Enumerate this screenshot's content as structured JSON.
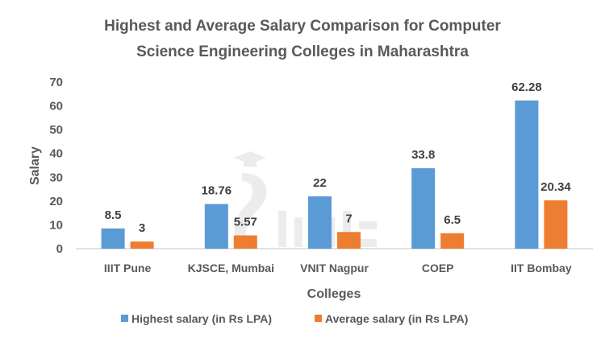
{
  "chart_data": {
    "type": "bar",
    "title": "Highest and Average Salary Comparison for Computer Science Engineering Colleges in Maharashtra",
    "title_lines": [
      "Highest and Average Salary Comparison for Computer",
      "Science Engineering Colleges in Maharashtra"
    ],
    "xlabel": "Colleges",
    "ylabel": "Salary",
    "ylim": [
      0,
      70
    ],
    "yticks": [
      "0",
      "10",
      "20",
      "30",
      "40",
      "50",
      "60",
      "70"
    ],
    "grid": false,
    "legend_position": "bottom",
    "categories": [
      "IIIT Pune",
      "KJSCE, Mumbai",
      "VNIT Nagpur",
      "COEP",
      "IIT Bombay"
    ],
    "series": [
      {
        "name": "Highest salary (in Rs LPA)",
        "color": "#5B9BD5",
        "values": [
          8.5,
          18.76,
          22,
          33.8,
          62.28
        ],
        "labels": [
          "8.5",
          "18.76",
          "22",
          "33.8",
          "62.28"
        ]
      },
      {
        "name": "Average salary (in Rs LPA)",
        "color": "#ED7D31",
        "values": [
          3,
          5.57,
          7,
          6.5,
          20.34
        ],
        "labels": [
          "3",
          "5.57",
          "7",
          "6.5",
          "20.34"
        ]
      }
    ]
  },
  "watermark": "shiksha"
}
